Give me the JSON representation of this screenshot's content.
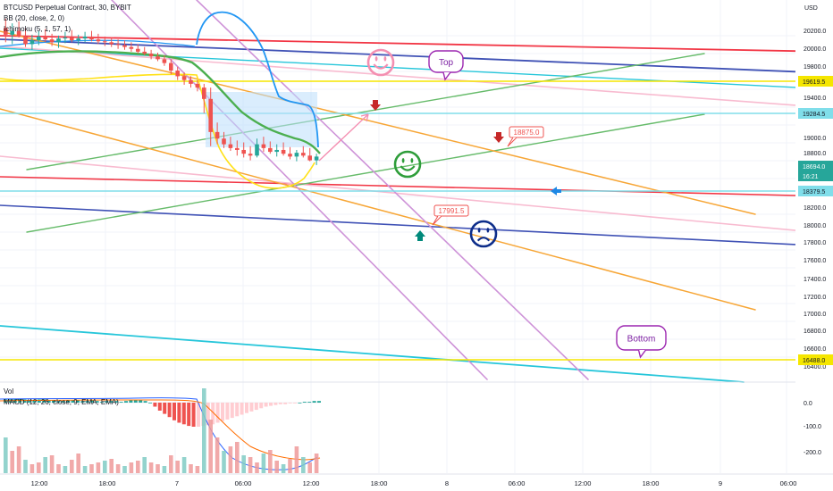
{
  "header": {
    "symbol": "BTCUSD Perpetual Contract, 30, BYBIT",
    "indicator_bb": "BB (20, close, 2, 0)",
    "indicator_ichimoku": "Ichimoku (5, 1, 57, 1)",
    "currency": "USD"
  },
  "sub_pane": {
    "vol_label": "Vol",
    "macd_label": "MACD (12, 26, close, 9, EMA, EMA)",
    "ticks": [
      "0.0",
      "-100.0",
      "-200.0"
    ]
  },
  "price_axis": {
    "ticks": [
      "20200.0",
      "20000.0",
      "19800.0",
      "19400.0",
      "19000.0",
      "18800.0",
      "18200.0",
      "18000.0",
      "17800.0",
      "17600.0",
      "17400.0",
      "17200.0",
      "17000.0",
      "16800.0",
      "16600.0",
      "16400.0"
    ]
  },
  "price_badges": {
    "b1": "19619.5",
    "b2": "19284.5",
    "current_price": "18694.0",
    "countdown": "16:21",
    "b3": "18379.5",
    "b4": "16488.0"
  },
  "time_axis": [
    "12:00",
    "18:00",
    "7",
    "06:00",
    "12:00",
    "18:00",
    "8",
    "06:00",
    "12:00",
    "18:00",
    "9",
    "06:00"
  ],
  "annotations": {
    "callout_top": "Top",
    "callout_bottom": "Bottom",
    "label_18875": "18875.0",
    "label_17991": "17991.5"
  },
  "colors": {
    "up": "#26a69a",
    "down": "#ef5350",
    "bb_band": "#2196f3",
    "bb_mid": "#4caf50",
    "kijun": "#ffe117",
    "trend_red": "#f23645",
    "trend_navy": "#3f51b5",
    "trend_cyan": "#26c6da",
    "trend_green": "#66bb6a",
    "trend_orange": "#f7a636",
    "trend_violet": "#ce93d8",
    "trend_pink": "#f8bbd0",
    "smiley_happy": "#2e9d3a",
    "smiley_pink": "#f48fb1",
    "smiley_sad": "#0d2d8a",
    "callout_border": "#9c27b0"
  },
  "chart_data": {
    "type": "candlestick",
    "interval": "30",
    "price_range": [
      16300,
      20350
    ],
    "candles_ohlc": [
      [
        20050,
        20150,
        19900,
        19980
      ],
      [
        19980,
        20100,
        19880,
        20020
      ],
      [
        20020,
        20120,
        19950,
        19960
      ],
      [
        19960,
        20050,
        19850,
        19880
      ],
      [
        19880,
        19980,
        19820,
        19920
      ],
      [
        19920,
        20020,
        19870,
        19960
      ],
      [
        19960,
        20040,
        19900,
        19930
      ],
      [
        19930,
        19990,
        19860,
        19900
      ],
      [
        19900,
        19970,
        19840,
        19940
      ],
      [
        19940,
        20010,
        19890,
        19950
      ],
      [
        19950,
        20030,
        19900,
        19920
      ],
      [
        19920,
        19980,
        19870,
        19940
      ],
      [
        19940,
        20010,
        19900,
        19960
      ],
      [
        19960,
        20020,
        19910,
        19930
      ],
      [
        19930,
        19990,
        19880,
        19910
      ],
      [
        19910,
        19960,
        19860,
        19900
      ],
      [
        19900,
        19950,
        19850,
        19880
      ],
      [
        19880,
        19930,
        19830,
        19870
      ],
      [
        19870,
        19920,
        19820,
        19850
      ],
      [
        19850,
        19900,
        19800,
        19830
      ],
      [
        19830,
        19880,
        19780,
        19800
      ],
      [
        19800,
        19850,
        19760,
        19780
      ],
      [
        19780,
        19820,
        19720,
        19750
      ],
      [
        19750,
        19790,
        19700,
        19720
      ],
      [
        19720,
        19760,
        19650,
        19680
      ],
      [
        19680,
        19720,
        19560,
        19600
      ],
      [
        19600,
        19640,
        19500,
        19540
      ],
      [
        19540,
        19580,
        19450,
        19500
      ],
      [
        19500,
        19540,
        19420,
        19460
      ],
      [
        19460,
        19500,
        19380,
        19420
      ],
      [
        19420,
        19460,
        19150,
        19300
      ],
      [
        19300,
        19420,
        18800,
        18950
      ],
      [
        18950,
        19050,
        18820,
        18880
      ],
      [
        18880,
        18950,
        18780,
        18820
      ],
      [
        18820,
        18900,
        18750,
        18780
      ],
      [
        18780,
        18860,
        18700,
        18760
      ],
      [
        18760,
        18840,
        18680,
        18720
      ],
      [
        18720,
        18800,
        18650,
        18700
      ],
      [
        18700,
        18880,
        18680,
        18820
      ],
      [
        18820,
        18900,
        18740,
        18780
      ],
      [
        18780,
        18850,
        18720,
        18740
      ],
      [
        18740,
        18820,
        18690,
        18760
      ],
      [
        18760,
        18840,
        18700,
        18720
      ],
      [
        18720,
        18790,
        18660,
        18690
      ],
      [
        18690,
        18760,
        18640,
        18730
      ],
      [
        18730,
        18800,
        18680,
        18700
      ],
      [
        18700,
        18780,
        18640,
        18650
      ],
      [
        18650,
        18720,
        18600,
        18690
      ]
    ],
    "trendlines_price_at_x": [
      {
        "name": "red-upper",
        "from": [
          0,
          20190
        ],
        "to": [
          932,
          19990
        ],
        "color": "#f23645"
      },
      {
        "name": "red-lower",
        "from": [
          0,
          18460
        ],
        "to": [
          932,
          18330
        ],
        "color": "#f23645"
      },
      {
        "name": "navy-upper",
        "from": [
          0,
          20150
        ],
        "to": [
          932,
          19830
        ],
        "color": "#3f51b5"
      },
      {
        "name": "navy-lower",
        "from": [
          0,
          18260
        ],
        "to": [
          932,
          17800
        ],
        "color": "#3f51b5"
      }
    ],
    "horizontal_levels": [
      19619.5,
      19284.5,
      18379.5,
      16488.0
    ]
  }
}
